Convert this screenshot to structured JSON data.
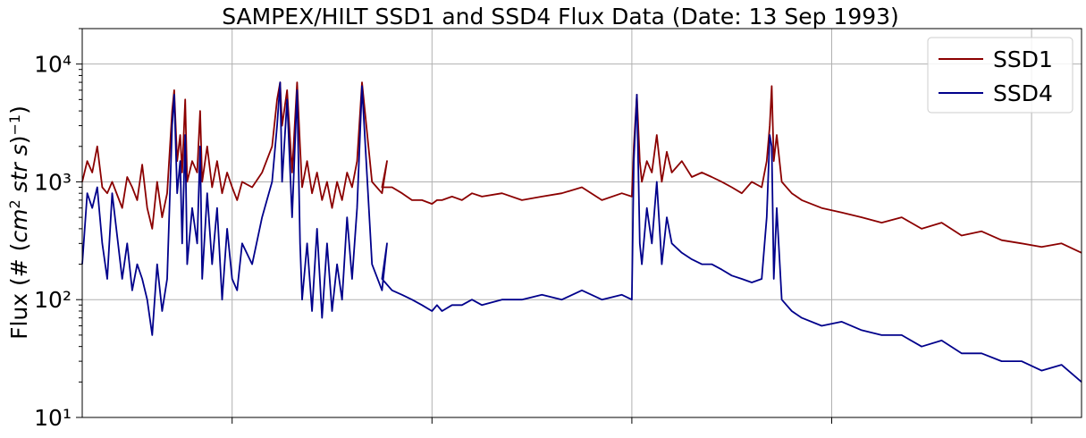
{
  "chart_data": {
    "type": "line",
    "title": "SAMPEX/HILT SSD1 and SSD4 Flux Data (Date: 13 Sep 1993)",
    "ylabel": "Flux (# (cm² str s)⁻¹)",
    "xlabel": "",
    "yscale": "log",
    "ylim": [
      10,
      20000
    ],
    "xlim": [
      0,
      1000
    ],
    "y_ticks": [
      10,
      100,
      1000,
      10000
    ],
    "y_tick_labels": [
      "10¹",
      "10²",
      "10³",
      "10⁴"
    ],
    "x_ticks": [
      150,
      350,
      550,
      750,
      950
    ],
    "grid": true,
    "legend_position": "top-right",
    "series": [
      {
        "name": "SSD1",
        "color": "#8b0000",
        "x": [
          0,
          5,
          10,
          15,
          20,
          25,
          30,
          40,
          45,
          50,
          55,
          60,
          65,
          70,
          75,
          80,
          85,
          90,
          92,
          95,
          98,
          100,
          103,
          105,
          110,
          115,
          118,
          120,
          125,
          130,
          135,
          140,
          145,
          150,
          155,
          160,
          170,
          180,
          190,
          195,
          198,
          200,
          205,
          210,
          215,
          218,
          220,
          225,
          230,
          235,
          240,
          245,
          250,
          255,
          260,
          265,
          270,
          275,
          280,
          290,
          300,
          305,
          300,
          310,
          320,
          330,
          340,
          350,
          355,
          360,
          370,
          380,
          390,
          400,
          420,
          440,
          460,
          480,
          500,
          520,
          540,
          550,
          552,
          555,
          558,
          560,
          565,
          570,
          575,
          580,
          585,
          590,
          600,
          610,
          620,
          630,
          640,
          650,
          660,
          670,
          680,
          685,
          688,
          690,
          692,
          695,
          700,
          710,
          720,
          740,
          760,
          780,
          800,
          820,
          840,
          860,
          880,
          900,
          920,
          940,
          960,
          980,
          1000
        ],
        "y": [
          1000,
          1500,
          1200,
          2000,
          900,
          800,
          1000,
          600,
          1100,
          900,
          700,
          1400,
          600,
          400,
          1000,
          500,
          800,
          4000,
          6000,
          1500,
          2500,
          1200,
          5000,
          1000,
          1500,
          1200,
          4000,
          1000,
          2000,
          900,
          1500,
          800,
          1200,
          900,
          700,
          1000,
          900,
          1200,
          2000,
          5000,
          7000,
          3000,
          6000,
          1200,
          7000,
          2000,
          900,
          1500,
          800,
          1200,
          700,
          1000,
          600,
          1000,
          700,
          1200,
          900,
          1500,
          7000,
          1000,
          800,
          1500,
          900,
          900,
          800,
          700,
          700,
          650,
          700,
          700,
          750,
          700,
          800,
          750,
          800,
          700,
          750,
          800,
          900,
          700,
          800,
          750,
          2000,
          5500,
          1500,
          1000,
          1500,
          1200,
          2500,
          1000,
          1800,
          1200,
          1500,
          1100,
          1200,
          1100,
          1000,
          900,
          800,
          1000,
          900,
          1500,
          3000,
          6500,
          1500,
          2500,
          1000,
          800,
          700,
          600,
          550,
          500,
          450,
          500,
          400,
          450,
          350,
          380,
          320,
          300,
          280,
          300,
          250
        ]
      },
      {
        "name": "SSD4",
        "color": "#00008b",
        "x": [
          0,
          5,
          10,
          15,
          20,
          25,
          30,
          40,
          45,
          50,
          55,
          60,
          65,
          70,
          75,
          80,
          85,
          90,
          92,
          95,
          98,
          100,
          103,
          105,
          110,
          115,
          118,
          120,
          125,
          130,
          135,
          140,
          145,
          150,
          155,
          160,
          170,
          180,
          190,
          195,
          198,
          200,
          205,
          210,
          215,
          218,
          220,
          225,
          230,
          235,
          240,
          245,
          250,
          255,
          260,
          265,
          270,
          275,
          280,
          290,
          300,
          305,
          300,
          310,
          320,
          330,
          340,
          350,
          355,
          360,
          370,
          380,
          390,
          400,
          420,
          440,
          460,
          480,
          500,
          520,
          540,
          550,
          552,
          555,
          558,
          560,
          565,
          570,
          575,
          580,
          585,
          590,
          600,
          610,
          620,
          630,
          640,
          650,
          660,
          670,
          680,
          685,
          688,
          690,
          692,
          695,
          700,
          710,
          720,
          740,
          760,
          780,
          800,
          820,
          840,
          860,
          880,
          900,
          920,
          940,
          960,
          980,
          1000
        ],
        "y": [
          200,
          800,
          600,
          900,
          300,
          150,
          800,
          150,
          300,
          120,
          200,
          150,
          100,
          50,
          200,
          80,
          150,
          3000,
          5500,
          800,
          1500,
          300,
          2500,
          200,
          600,
          300,
          2000,
          150,
          800,
          200,
          600,
          100,
          400,
          150,
          120,
          300,
          200,
          500,
          1000,
          3000,
          7000,
          1000,
          5000,
          500,
          6000,
          300,
          100,
          300,
          80,
          400,
          70,
          300,
          80,
          200,
          100,
          500,
          150,
          600,
          6500,
          200,
          120,
          300,
          150,
          120,
          110,
          100,
          90,
          80,
          90,
          80,
          90,
          90,
          100,
          90,
          100,
          100,
          110,
          100,
          120,
          100,
          110,
          100,
          1500,
          5500,
          300,
          200,
          600,
          300,
          1000,
          200,
          500,
          300,
          250,
          220,
          200,
          200,
          180,
          160,
          150,
          140,
          150,
          500,
          2500,
          2000,
          150,
          600,
          100,
          80,
          70,
          60,
          65,
          55,
          50,
          50,
          40,
          45,
          35,
          35,
          30,
          30,
          25,
          28,
          20
        ]
      }
    ]
  }
}
